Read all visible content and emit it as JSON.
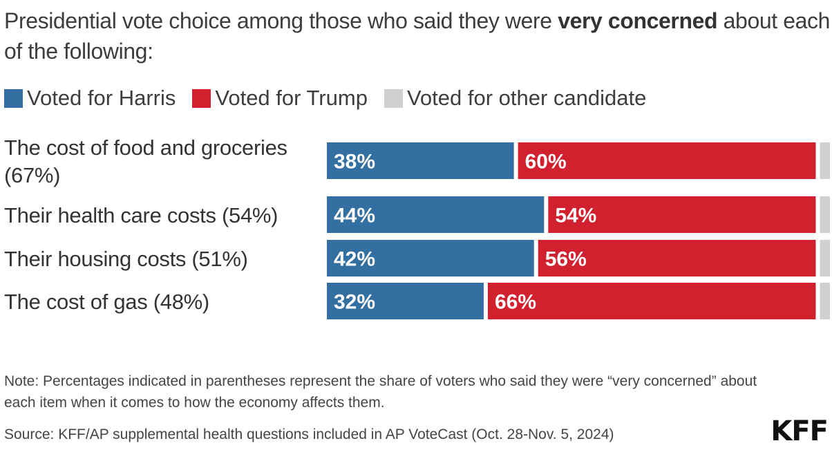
{
  "title": {
    "before": "Presidential vote choice among those who said they were ",
    "emphasis": "very concerned",
    "after": " about each of the following:"
  },
  "legend": [
    {
      "label": "Voted for Harris",
      "color": "#336fa0"
    },
    {
      "label": "Voted for Trump",
      "color": "#d1202e"
    },
    {
      "label": "Voted for other candidate",
      "color": "#d0d0d0"
    }
  ],
  "chart_data": {
    "type": "bar",
    "orientation": "horizontal",
    "stacked": true,
    "categories": [
      "The cost of food and groceries (67%)",
      "Their health care costs (54%)",
      "Their housing costs (51%)",
      "The cost of gas (48%)"
    ],
    "series": [
      {
        "name": "Voted for Harris",
        "values": [
          38,
          44,
          42,
          32
        ],
        "labels": [
          "38%",
          "44%",
          "42%",
          "32%"
        ],
        "color": "#336fa0"
      },
      {
        "name": "Voted for Trump",
        "values": [
          60,
          54,
          56,
          66
        ],
        "labels": [
          "60%",
          "54%",
          "56%",
          "66%"
        ],
        "color": "#d1202e"
      },
      {
        "name": "Voted for other candidate",
        "values": [
          2,
          2,
          2,
          2
        ],
        "labels": [
          "",
          "",
          "",
          ""
        ],
        "color": "#d0d0d0"
      }
    ],
    "xlim": [
      0,
      100
    ]
  },
  "note": "Note: Percentages indicated in parentheses represent the share of voters who said they were “very concerned” about each item when it comes to how the economy affects them.",
  "source": "Source: KFF/AP supplemental health questions included in AP VoteCast (Oct. 28-Nov. 5, 2024)",
  "logo": "KFF"
}
